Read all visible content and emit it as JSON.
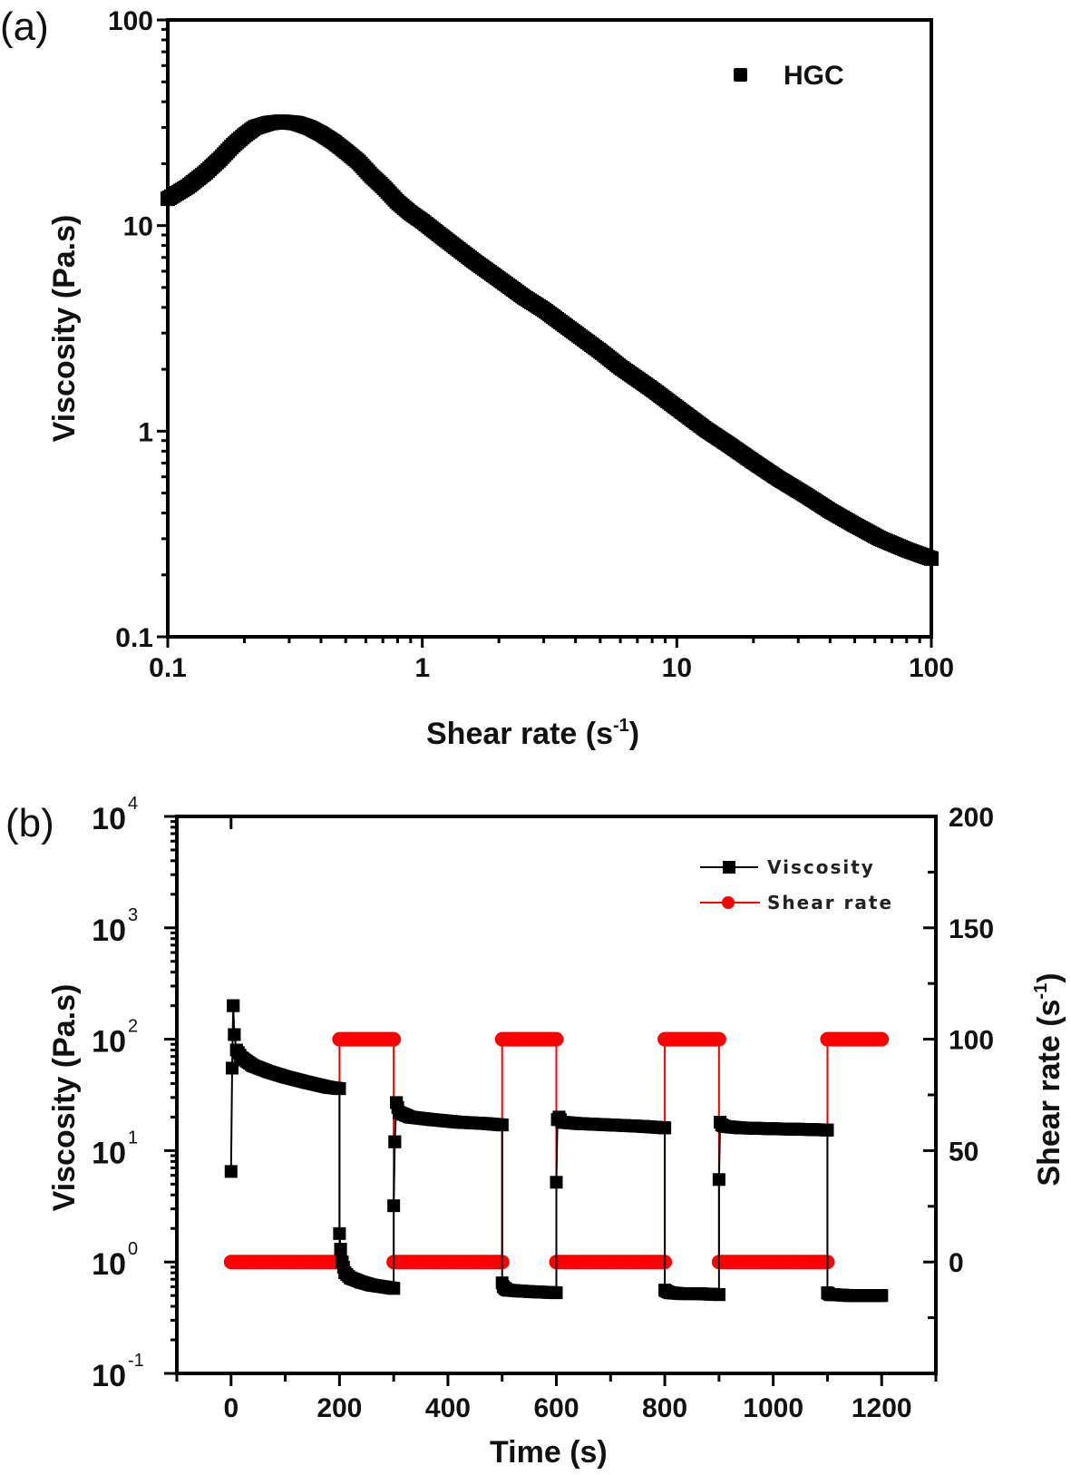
{
  "chart_data": [
    {
      "panel": "(a)",
      "type": "scatter",
      "title": "",
      "xlabel": "Shear rate (s",
      "xlabel_sup": "-1",
      "xlabel_close": ")",
      "ylabel": "Viscosity (Pa.s)",
      "xscale": "log",
      "yscale": "log",
      "xlim": [
        0.1,
        100
      ],
      "ylim": [
        0.1,
        100
      ],
      "xticks": [
        0.1,
        1,
        10,
        100
      ],
      "xtick_labels": [
        "0.1",
        "1",
        "10",
        "100"
      ],
      "yticks": [
        0.1,
        1,
        10,
        100
      ],
      "ytick_labels": [
        "0.1",
        "1",
        "10",
        "100"
      ],
      "grid": false,
      "legend": {
        "position": "top-right",
        "entries": [
          {
            "name": "HGC",
            "marker": "square",
            "color": "#000000"
          }
        ]
      },
      "series": [
        {
          "name": "HGC",
          "color": "#000000",
          "x": [
            0.1,
            0.12,
            0.14,
            0.16,
            0.18,
            0.2,
            0.22,
            0.25,
            0.28,
            0.32,
            0.36,
            0.4,
            0.45,
            0.5,
            0.56,
            0.63,
            0.7,
            0.8,
            0.9,
            1.0,
            1.2,
            1.4,
            1.6,
            2.0,
            2.5,
            3.0,
            4.0,
            5.0,
            6.0,
            8.0,
            10,
            13,
            16,
            20,
            25,
            32,
            40,
            50,
            63,
            80,
            100
          ],
          "y": [
            13.5,
            15.5,
            18,
            21,
            24.5,
            27.5,
            30,
            31.5,
            32,
            31.5,
            30,
            28,
            25.5,
            23,
            20.5,
            17.5,
            15.5,
            13,
            11.5,
            10.5,
            8.8,
            7.6,
            6.7,
            5.5,
            4.5,
            3.9,
            3.0,
            2.45,
            2.05,
            1.6,
            1.3,
            1.02,
            0.86,
            0.71,
            0.59,
            0.49,
            0.41,
            0.35,
            0.3,
            0.265,
            0.24
          ]
        }
      ]
    },
    {
      "panel": "(b)",
      "type": "line",
      "title": "",
      "xlabel": "Time (s)",
      "ylabel": "Viscosity (Pa.s)",
      "y2label": "Shear rate (s",
      "y2label_sup": "-1",
      "y2label_close": ")",
      "xlim": [
        -100,
        1300
      ],
      "ylim": [
        0.1,
        10000
      ],
      "yscale": "log",
      "y2lim": [
        -50,
        200
      ],
      "xticks": [
        0,
        200,
        400,
        600,
        800,
        1000,
        1200
      ],
      "xtick_labels": [
        "0",
        "200",
        "400",
        "600",
        "800",
        "1000",
        "1200"
      ],
      "yticks": [
        0.1,
        1,
        10,
        100,
        1000,
        10000
      ],
      "ytick_labels": [
        {
          "base": "10",
          "exp": "-1"
        },
        {
          "base": "10",
          "exp": "0"
        },
        {
          "base": "10",
          "exp": "1"
        },
        {
          "base": "10",
          "exp": "2"
        },
        {
          "base": "10",
          "exp": "3"
        },
        {
          "base": "10",
          "exp": "4"
        }
      ],
      "y2ticks": [
        0,
        50,
        100,
        150,
        200
      ],
      "y2tick_labels": [
        "0",
        "50",
        "100",
        "150",
        "200"
      ],
      "grid": false,
      "legend": {
        "position": "top-right",
        "entries": [
          {
            "name": "Viscosity",
            "marker": "square",
            "color": "#000000"
          },
          {
            "name": "Shear rate",
            "marker": "circle",
            "color": "#ff0000"
          }
        ]
      },
      "series": [
        {
          "name": "Viscosity",
          "axis": "left",
          "color": "#000000",
          "x": [
            0,
            2,
            4,
            6,
            10,
            20,
            40,
            70,
            100,
            140,
            180,
            200,
            200,
            202,
            205,
            210,
            220,
            240,
            260,
            280,
            300,
            300,
            302,
            305,
            310,
            330,
            370,
            420,
            470,
            500,
            500,
            502,
            505,
            510,
            530,
            560,
            600,
            600,
            602,
            605,
            610,
            640,
            700,
            760,
            800,
            800,
            802,
            805,
            810,
            830,
            860,
            900,
            900,
            902,
            905,
            910,
            940,
            1000,
            1060,
            1100,
            1100,
            1102,
            1105,
            1110,
            1140,
            1170,
            1200
          ],
          "y": [
            6.5,
            55,
            200,
            110,
            80,
            68,
            58,
            51,
            46,
            41,
            37,
            36,
            1.8,
            1.3,
            1.0,
            0.8,
            0.72,
            0.66,
            0.62,
            0.6,
            0.58,
            3.2,
            12,
            27,
            22,
            20,
            19,
            18,
            17.5,
            17,
            0.65,
            0.6,
            0.58,
            0.56,
            0.55,
            0.54,
            0.53,
            5.2,
            19,
            20,
            18,
            17.5,
            17,
            16.5,
            16,
            0.56,
            0.55,
            0.54,
            0.53,
            0.52,
            0.52,
            0.51,
            5.5,
            18,
            17,
            16.5,
            16,
            15.7,
            15.5,
            15.3,
            0.53,
            0.52,
            0.51,
            0.51,
            0.5,
            0.5,
            0.5
          ]
        },
        {
          "name": "Shear rate",
          "axis": "right",
          "color": "#ff0000",
          "x": [
            0,
            200,
            200,
            300,
            300,
            500,
            500,
            600,
            600,
            800,
            800,
            900,
            900,
            1100,
            1100,
            1200
          ],
          "y": [
            0,
            0,
            100,
            100,
            0,
            0,
            100,
            100,
            0,
            0,
            100,
            100,
            0,
            0,
            100,
            100
          ]
        }
      ]
    }
  ]
}
